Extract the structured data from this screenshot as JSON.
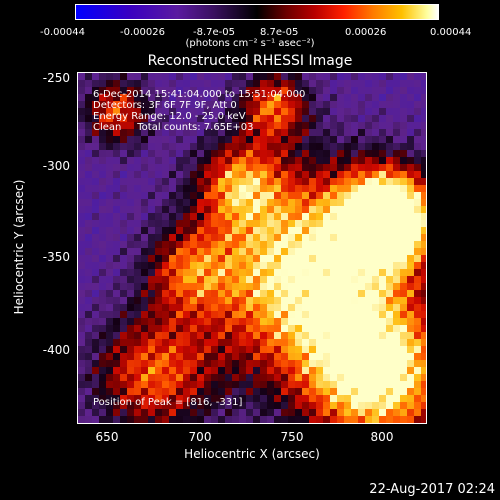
{
  "colorbar": {
    "ticks": [
      "-0.00044",
      "-0.00026",
      "-8.7e-05",
      "8.7e-05",
      "0.00026",
      "0.00044"
    ],
    "unit": "(photons cm⁻² s⁻¹ asec⁻²)"
  },
  "title": "Reconstructed RHESSI Image",
  "info": {
    "time": "6-Dec-2014 15:41:04.000 to 15:51:04.000",
    "detectors": "Detectors: 3F 6F 7F 9F, Att 0",
    "energy": "Energy Range: 12.0 - 25.0 keV",
    "clean": "Clean     Total counts: 7.65E+03",
    "peak": "Position of Peak = [816, -331]"
  },
  "axes": {
    "xlabel": "Heliocentric X (arcsec)",
    "ylabel": "Heliocentric Y (arcsec)",
    "xticks": [
      "650",
      "700",
      "750",
      "800"
    ],
    "yticks": [
      "-250",
      "-300",
      "-350",
      "-400"
    ],
    "xrange": [
      635,
      825
    ],
    "yrange": [
      -445,
      -245
    ]
  },
  "timestamp": "22-Aug-2017 02:24"
}
